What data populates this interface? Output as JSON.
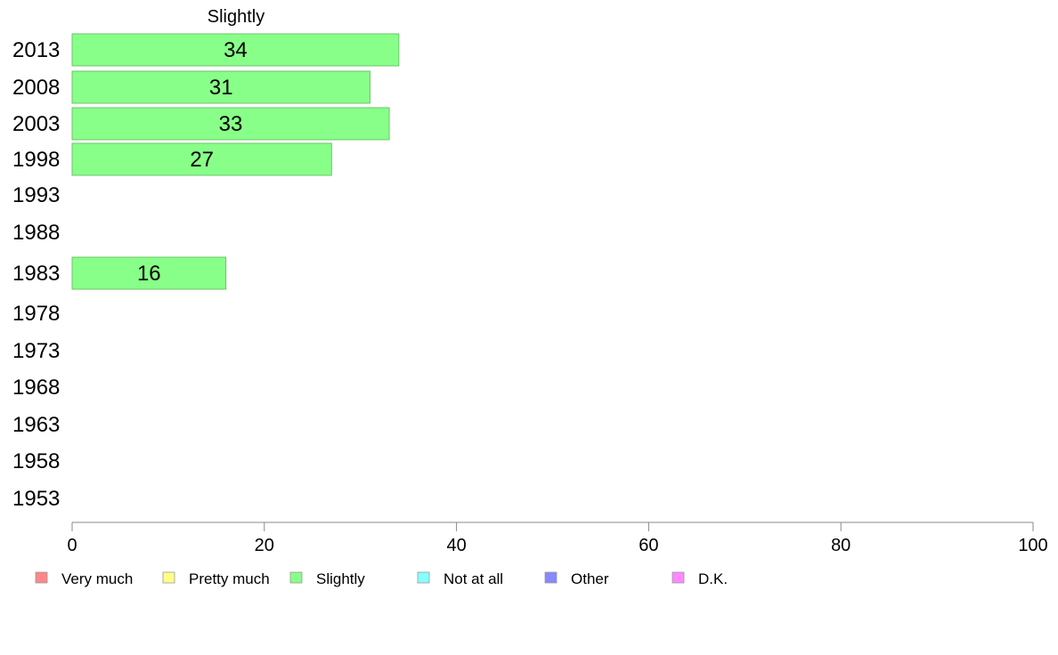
{
  "chart_data": {
    "type": "bar",
    "orientation": "horizontal",
    "title": "Slightly",
    "categories": [
      "2013",
      "2008",
      "2003",
      "1998",
      "1993",
      "1988",
      "1983",
      "1978",
      "1973",
      "1968",
      "1963",
      "1958",
      "1953"
    ],
    "series": [
      {
        "name": "Slightly",
        "color": "#88ff88",
        "values": [
          34,
          31,
          33,
          27,
          null,
          null,
          16,
          null,
          null,
          null,
          null,
          null,
          null
        ]
      }
    ],
    "xlim": [
      0,
      100
    ],
    "xticks": [
      0,
      20,
      40,
      60,
      80,
      100
    ],
    "grid": false,
    "legend_position": "bottom",
    "legend": [
      {
        "label": "Very much",
        "color": "#ff8888"
      },
      {
        "label": "Pretty much",
        "color": "#ffff88"
      },
      {
        "label": "Slightly",
        "color": "#88ff88"
      },
      {
        "label": "Not at all",
        "color": "#88ffff"
      },
      {
        "label": "Other",
        "color": "#8888ff"
      },
      {
        "label": "D.K.",
        "color": "#ff88ff"
      }
    ]
  }
}
